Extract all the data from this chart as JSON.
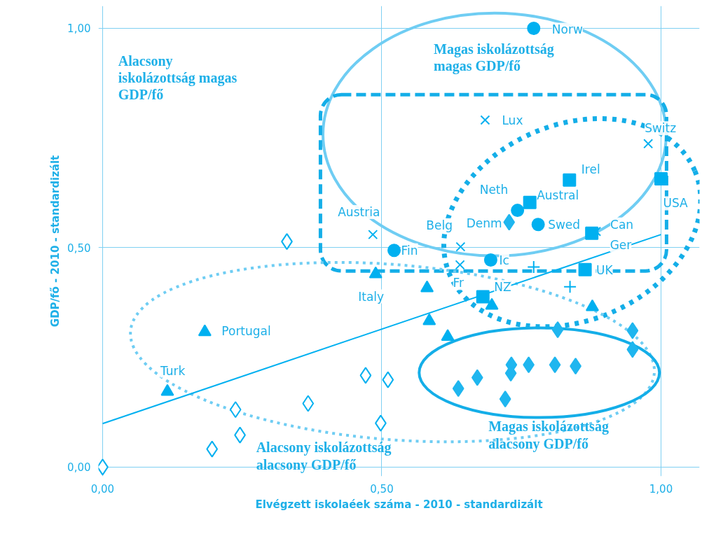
{
  "chart_data": {
    "type": "scatter",
    "xlabel": "Elvégzett iskolaéek száma - 2010 - standardizált",
    "ylabel": "GDP/fő - 2010 - standardizált",
    "xlim": [
      -0.0075,
      1.069
    ],
    "ylim": [
      -0.021,
      1.051
    ],
    "xticks": [
      {
        "value": 0,
        "label": "0,00"
      },
      {
        "value": 0.5,
        "label": "0,50"
      },
      {
        "value": 1,
        "label": "1,00"
      }
    ],
    "yticks": [
      {
        "value": 0,
        "label": "0,00"
      },
      {
        "value": 0.5,
        "label": "0,50"
      },
      {
        "value": 1,
        "label": "1,00"
      }
    ],
    "grid": true,
    "series": [
      {
        "marker": "circle",
        "color": "#00b0f0",
        "x": [
          0.772,
          0.522,
          0.743,
          0.78,
          0.695
        ],
        "values": [
          1.0,
          0.494,
          0.585,
          0.553,
          0.472
        ]
      },
      {
        "marker": "square",
        "color": "#00b0f0",
        "x": [
          0.836,
          0.765,
          0.876,
          1.0,
          0.864,
          0.681
        ],
        "values": [
          0.654,
          0.603,
          0.533,
          0.657,
          0.45,
          0.388
        ]
      },
      {
        "marker": "x",
        "color": "#00b0f0",
        "x": [
          0.685,
          0.977,
          0.484,
          0.641,
          0.64,
          0.884
        ],
        "values": [
          0.791,
          0.737,
          0.53,
          0.502,
          0.461,
          0.537
        ]
      },
      {
        "marker": "cross",
        "color": "#00b0f0",
        "x": [
          0.772,
          0.837
        ],
        "values": [
          0.456,
          0.411
        ]
      },
      {
        "marker": "triangle",
        "color": "#00b0f0",
        "x": [
          0.489,
          0.183,
          0.116,
          0.581,
          0.585,
          0.618,
          0.697,
          0.877
        ],
        "values": [
          0.44,
          0.308,
          0.172,
          0.408,
          0.333,
          0.297,
          0.368,
          0.365
        ]
      },
      {
        "marker": "diamond",
        "color": "#1fb6ef",
        "x": [
          0.728,
          0.815,
          0.949,
          0.949,
          0.637,
          0.671,
          0.732,
          0.731,
          0.763,
          0.81,
          0.847,
          0.721
        ],
        "values": [
          0.558,
          0.313,
          0.311,
          0.268,
          0.179,
          0.204,
          0.233,
          0.214,
          0.233,
          0.233,
          0.23,
          0.155
        ]
      },
      {
        "marker": "diamond_open",
        "color": "#00b0f0",
        "x": [
          0.33,
          0.471,
          0.511,
          0.368,
          0.238,
          0.498,
          0.246,
          0.196,
          0.0
        ],
        "values": [
          0.514,
          0.209,
          0.199,
          0.145,
          0.131,
          0.1,
          0.073,
          0.041,
          0.0
        ]
      },
      {
        "type": "line",
        "color": "#00b0f0",
        "x": [
          0,
          1
        ],
        "values": [
          0.099,
          0.53
        ]
      }
    ],
    "annotations": [
      {
        "text": "Norw",
        "x": 0.772,
        "y": 1.0
      },
      {
        "text": "Lux",
        "x": 0.685,
        "y": 0.791
      },
      {
        "text": "Switz",
        "x": 0.977,
        "y": 0.737
      },
      {
        "text": "Irel",
        "x": 0.836,
        "y": 0.654
      },
      {
        "text": "Neth",
        "x": 0.743,
        "y": 0.585
      },
      {
        "text": "Austral",
        "x": 0.765,
        "y": 0.603
      },
      {
        "text": "USA",
        "x": 1.0,
        "y": 0.657
      },
      {
        "text": "Austria",
        "x": 0.484,
        "y": 0.53
      },
      {
        "text": "Belg",
        "x": 0.641,
        "y": 0.502
      },
      {
        "text": "Denm",
        "x": 0.728,
        "y": 0.558
      },
      {
        "text": "Swed",
        "x": 0.78,
        "y": 0.553
      },
      {
        "text": "Can",
        "x": 0.884,
        "y": 0.537
      },
      {
        "text": "Fin",
        "x": 0.522,
        "y": 0.494
      },
      {
        "text": "Ger",
        "x": 0.876,
        "y": 0.533
      },
      {
        "text": "Ic",
        "x": 0.695,
        "y": 0.472
      },
      {
        "text": "UK",
        "x": 0.864,
        "y": 0.45
      },
      {
        "text": "Fr",
        "x": 0.64,
        "y": 0.461
      },
      {
        "text": "NZ",
        "x": 0.681,
        "y": 0.388
      },
      {
        "text": "Italy",
        "x": 0.489,
        "y": 0.44
      },
      {
        "text": "Portugal",
        "x": 0.183,
        "y": 0.308
      },
      {
        "text": "Turk",
        "x": 0.116,
        "y": 0.172
      },
      "Alacsony\niskolázottság magas\nGDP/fő",
      "Magas iskolázottság\nmagas GDP/fő",
      "Alacsony iskolázottság\nalacsony GDP/fő",
      "Magas iskolázottság\nalacsony GDP/fő"
    ]
  }
}
